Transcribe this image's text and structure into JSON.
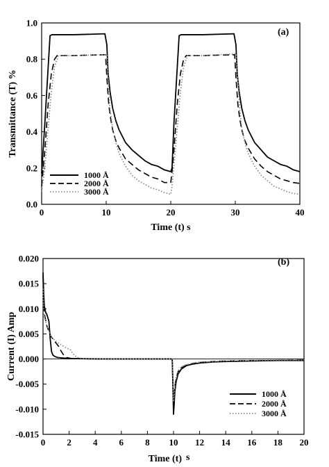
{
  "header_fragment": "",
  "legend_unit": "Å",
  "chart_data": [
    {
      "type": "line",
      "panel_label": "(a)",
      "xlabel": "Time (t)  s",
      "ylabel": "Transmittance (T) %",
      "xlim": [
        0,
        40
      ],
      "ylim": [
        0,
        1.0
      ],
      "xticks": [
        "0",
        "10",
        "20",
        "30",
        "40"
      ],
      "yticks": [
        "0.0",
        "0.2",
        "0.4",
        "0.6",
        "0.8",
        "1.0"
      ],
      "grid": false,
      "legend_position": "bottom-left",
      "series": [
        {
          "name": "1000",
          "style": "solid",
          "color": "#000000",
          "x": [
            0,
            0.5,
            1,
            1.3,
            1.6,
            2,
            5,
            9.8,
            10.1,
            10.3,
            10.6,
            11,
            11.5,
            12,
            13,
            14,
            15,
            16,
            17,
            18,
            19,
            20,
            20.2,
            20.5,
            21,
            21.3,
            21.6,
            22,
            25,
            29.8,
            30.1,
            30.3,
            30.6,
            31,
            31.5,
            32,
            33,
            34,
            35,
            36,
            37,
            38,
            39,
            40
          ],
          "y": [
            0.17,
            0.45,
            0.75,
            0.93,
            0.935,
            0.935,
            0.935,
            0.94,
            0.88,
            0.72,
            0.62,
            0.53,
            0.46,
            0.41,
            0.34,
            0.3,
            0.27,
            0.24,
            0.22,
            0.21,
            0.19,
            0.18,
            0.2,
            0.45,
            0.75,
            0.93,
            0.935,
            0.935,
            0.935,
            0.94,
            0.88,
            0.72,
            0.62,
            0.53,
            0.46,
            0.41,
            0.34,
            0.3,
            0.26,
            0.24,
            0.22,
            0.21,
            0.19,
            0.18
          ]
        },
        {
          "name": "2000",
          "style": "dashed",
          "color": "#000000",
          "x": [
            0,
            0.5,
            1,
            1.5,
            2,
            2.4,
            5,
            9.9,
            10.1,
            10.4,
            10.7,
            11,
            11.5,
            12,
            13,
            14,
            15,
            16,
            17,
            18,
            19,
            20,
            20.2,
            20.5,
            21,
            21.5,
            22,
            22.4,
            25,
            29.9,
            30.1,
            30.4,
            30.7,
            31,
            31.5,
            32,
            33,
            34,
            35,
            36,
            37,
            38,
            39,
            40
          ],
          "y": [
            0.1,
            0.3,
            0.55,
            0.72,
            0.8,
            0.82,
            0.82,
            0.825,
            0.7,
            0.55,
            0.47,
            0.41,
            0.35,
            0.31,
            0.25,
            0.22,
            0.19,
            0.17,
            0.15,
            0.14,
            0.12,
            0.12,
            0.18,
            0.3,
            0.55,
            0.72,
            0.8,
            0.82,
            0.82,
            0.825,
            0.7,
            0.55,
            0.47,
            0.41,
            0.35,
            0.31,
            0.25,
            0.21,
            0.18,
            0.16,
            0.14,
            0.13,
            0.12,
            0.115
          ]
        },
        {
          "name": "3000",
          "style": "dotted",
          "color": "#8a8a8a",
          "x": [
            0,
            0.5,
            1,
            1.5,
            2,
            2.6,
            5,
            10.1,
            10.3,
            10.6,
            11,
            11.5,
            12,
            13,
            14,
            15,
            16,
            17,
            18,
            19,
            20,
            20.2,
            20.5,
            21,
            21.5,
            22,
            22.6,
            25,
            30.2,
            30.4,
            30.7,
            31,
            31.5,
            32,
            33,
            34,
            35,
            36,
            37,
            38,
            39,
            40
          ],
          "y": [
            0.07,
            0.2,
            0.42,
            0.62,
            0.76,
            0.82,
            0.82,
            0.825,
            0.68,
            0.52,
            0.42,
            0.34,
            0.28,
            0.21,
            0.16,
            0.13,
            0.11,
            0.09,
            0.08,
            0.065,
            0.055,
            0.1,
            0.22,
            0.42,
            0.62,
            0.76,
            0.82,
            0.82,
            0.83,
            0.68,
            0.52,
            0.42,
            0.34,
            0.28,
            0.21,
            0.16,
            0.13,
            0.1,
            0.085,
            0.07,
            0.06,
            0.055
          ]
        }
      ]
    },
    {
      "type": "line",
      "panel_label": "(b)",
      "xlabel": "Time (t)",
      "xlabel_unit": "s",
      "ylabel": "Current (I) Amp",
      "xlim": [
        0,
        20
      ],
      "ylim": [
        -0.015,
        0.02
      ],
      "xticks": [
        "0",
        "2",
        "4",
        "6",
        "8",
        "10",
        "12",
        "14",
        "16",
        "18",
        "20"
      ],
      "yticks": [
        "-0.015",
        "-0.010",
        "-0.005",
        "0.000",
        "0.005",
        "0.010",
        "0.015",
        "0.020"
      ],
      "grid": false,
      "legend_position": "bottom-right",
      "series": [
        {
          "name": "1000",
          "style": "solid",
          "color": "#000000",
          "x": [
            0,
            0.05,
            0.1,
            0.2,
            0.3,
            0.45,
            0.55,
            0.65,
            0.75,
            0.9,
            1.1,
            1.5,
            2,
            3,
            5,
            8,
            9.9,
            9.95,
            10.0,
            10.05,
            10.1,
            10.2,
            10.35,
            10.6,
            11,
            11.5,
            12,
            13,
            14,
            16,
            18,
            20
          ],
          "y": [
            0.0172,
            0.013,
            0.0105,
            0.0093,
            0.0088,
            0.0075,
            0.004,
            0.0015,
            0.0008,
            0.0005,
            0.0003,
            0.0002,
            0.0001,
            5e-05,
            0,
            0,
            0,
            -0.005,
            -0.011,
            -0.009,
            -0.0065,
            -0.0045,
            -0.003,
            -0.002,
            -0.0013,
            -0.001,
            -0.0008,
            -0.0006,
            -0.0005,
            -0.0004,
            -0.0003,
            -0.0003
          ]
        },
        {
          "name": "2000",
          "style": "dashed",
          "color": "#000000",
          "x": [
            0,
            0.05,
            0.1,
            0.3,
            0.6,
            0.9,
            1.2,
            1.4,
            1.6,
            1.8,
            2.2,
            3,
            5,
            8,
            9.9,
            9.95,
            10.0,
            10.05,
            10.1,
            10.2,
            10.35,
            10.6,
            11,
            11.5,
            12,
            13,
            14,
            16,
            18,
            20
          ],
          "y": [
            0.0165,
            0.011,
            0.009,
            0.0065,
            0.0045,
            0.0035,
            0.0025,
            0.0015,
            0.0007,
            0.0003,
            0.0001,
            5e-05,
            0,
            0,
            0,
            -0.004,
            -0.0095,
            -0.0075,
            -0.0055,
            -0.0038,
            -0.0025,
            -0.0017,
            -0.0012,
            -0.0009,
            -0.0007,
            -0.0005,
            -0.0004,
            -0.0003,
            -0.0003,
            -0.0002
          ]
        },
        {
          "name": "3000",
          "style": "dotted",
          "color": "#8a8a8a",
          "x": [
            0,
            0.05,
            0.1,
            0.3,
            0.6,
            1,
            1.4,
            1.8,
            2.1,
            2.3,
            2.6,
            3,
            5,
            8,
            9.9,
            9.95,
            10.0,
            10.05,
            10.1,
            10.2,
            10.35,
            10.6,
            11,
            11.5,
            12,
            13,
            14,
            16,
            18,
            20
          ],
          "y": [
            0.014,
            0.0095,
            0.0085,
            0.0065,
            0.0045,
            0.0035,
            0.0028,
            0.0022,
            0.0018,
            0.001,
            0.0003,
            0.0001,
            0,
            0,
            0,
            -0.0035,
            -0.0085,
            -0.007,
            -0.0052,
            -0.0036,
            -0.0024,
            -0.0016,
            -0.0011,
            -0.0008,
            -0.0006,
            -0.0005,
            -0.0004,
            -0.0003,
            -0.0002,
            -0.0002
          ]
        }
      ]
    }
  ]
}
